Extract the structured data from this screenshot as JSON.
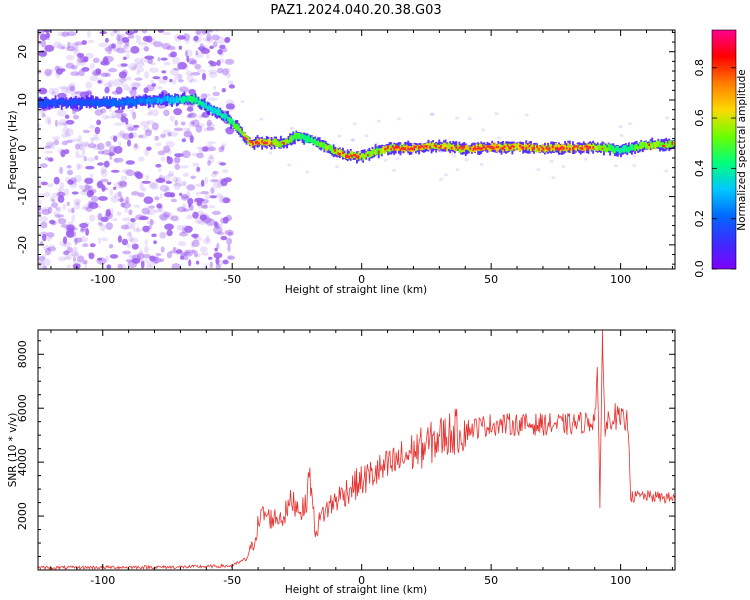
{
  "title": "PAZ1.2024.040.20.38.G03",
  "colors": {
    "snr_line": "#e8322f",
    "doppler_peak": "#ff2a2a",
    "scatter_speckle": "#9b5cf0",
    "colormap": [
      "#7f00ff",
      "#3d2cff",
      "#0068ff",
      "#00c8ff",
      "#00ff7a",
      "#6cff00",
      "#ffd800",
      "#ff7c00",
      "#ff0000",
      "#ff0090"
    ]
  },
  "chart_data": [
    {
      "type": "heatmap",
      "xlabel": "Height of straight line (km)",
      "ylabel": "Frequency (Hz)",
      "xlim": [
        -125,
        121
      ],
      "ylim": [
        -25,
        24.5
      ],
      "xticks": [
        -100,
        -50,
        0,
        50,
        100
      ],
      "yticks": [
        -20,
        -10,
        0,
        10,
        20
      ],
      "grid": false,
      "colorbar": {
        "label": "Normalized spectral amplitude",
        "range": [
          0,
          0.95
        ],
        "ticks": [
          0.0,
          0.2,
          0.4,
          0.6,
          0.8
        ]
      },
      "noise_region_x": [
        -125,
        -50
      ],
      "ridge": {
        "x": [
          -125,
          -110,
          -95,
          -85,
          -75,
          -65,
          -58,
          -52,
          -47,
          -43,
          -38,
          -30,
          -25,
          -20,
          -15,
          -10,
          -5,
          0,
          5,
          10,
          20,
          30,
          40,
          50,
          60,
          70,
          80,
          90,
          100,
          110,
          121
        ],
        "freq": [
          9.3,
          9.5,
          9.4,
          9.8,
          10.1,
          10.2,
          8.0,
          6.4,
          3.5,
          1.0,
          1.3,
          0.9,
          2.6,
          1.8,
          0.6,
          -0.8,
          -1.6,
          -1.6,
          -0.7,
          0.0,
          0.1,
          0.4,
          0.0,
          0.2,
          0.3,
          0.0,
          0.1,
          0.3,
          -0.4,
          0.6,
          0.8
        ],
        "amplitude": [
          0.25,
          0.25,
          0.3,
          0.35,
          0.45,
          0.65,
          0.5,
          0.6,
          0.75,
          0.92,
          0.85,
          0.8,
          0.7,
          0.7,
          0.75,
          0.85,
          0.9,
          0.85,
          0.8,
          0.88,
          0.92,
          0.85,
          0.9,
          0.92,
          0.88,
          0.9,
          0.9,
          0.85,
          0.6,
          0.8,
          0.8
        ]
      }
    },
    {
      "type": "line",
      "xlabel": "Height of straight line (km)",
      "ylabel": "SNR (10 * v/v)",
      "xlim": [
        -125,
        121
      ],
      "ylim": [
        0,
        8900
      ],
      "xticks": [
        -100,
        -50,
        0,
        50,
        100
      ],
      "yticks": [
        2000,
        4000,
        6000,
        8000
      ],
      "grid": false,
      "series": [
        {
          "x": [
            -125,
            -100,
            -70,
            -50,
            -45,
            -42,
            -40,
            -38,
            -35,
            -30,
            -27,
            -24,
            -22,
            -20,
            -18,
            -15,
            -10,
            -5,
            0,
            5,
            10,
            15,
            20,
            25,
            30,
            35,
            40,
            45,
            50,
            60,
            70,
            80,
            88,
            90,
            91,
            92,
            93,
            94,
            95,
            97,
            100,
            103,
            104,
            108,
            115,
            121
          ],
          "y": [
            80,
            100,
            110,
            150,
            400,
            900,
            1700,
            2100,
            1900,
            2000,
            2600,
            2300,
            2200,
            3600,
            1400,
            2100,
            2600,
            3000,
            3300,
            3600,
            3800,
            4100,
            4400,
            4600,
            4900,
            5100,
            5200,
            5300,
            5400,
            5400,
            5400,
            5400,
            5500,
            5600,
            7500,
            2300,
            8900,
            5000,
            5500,
            5800,
            5500,
            5500,
            2700,
            2750,
            2700,
            2650
          ]
        }
      ]
    }
  ]
}
